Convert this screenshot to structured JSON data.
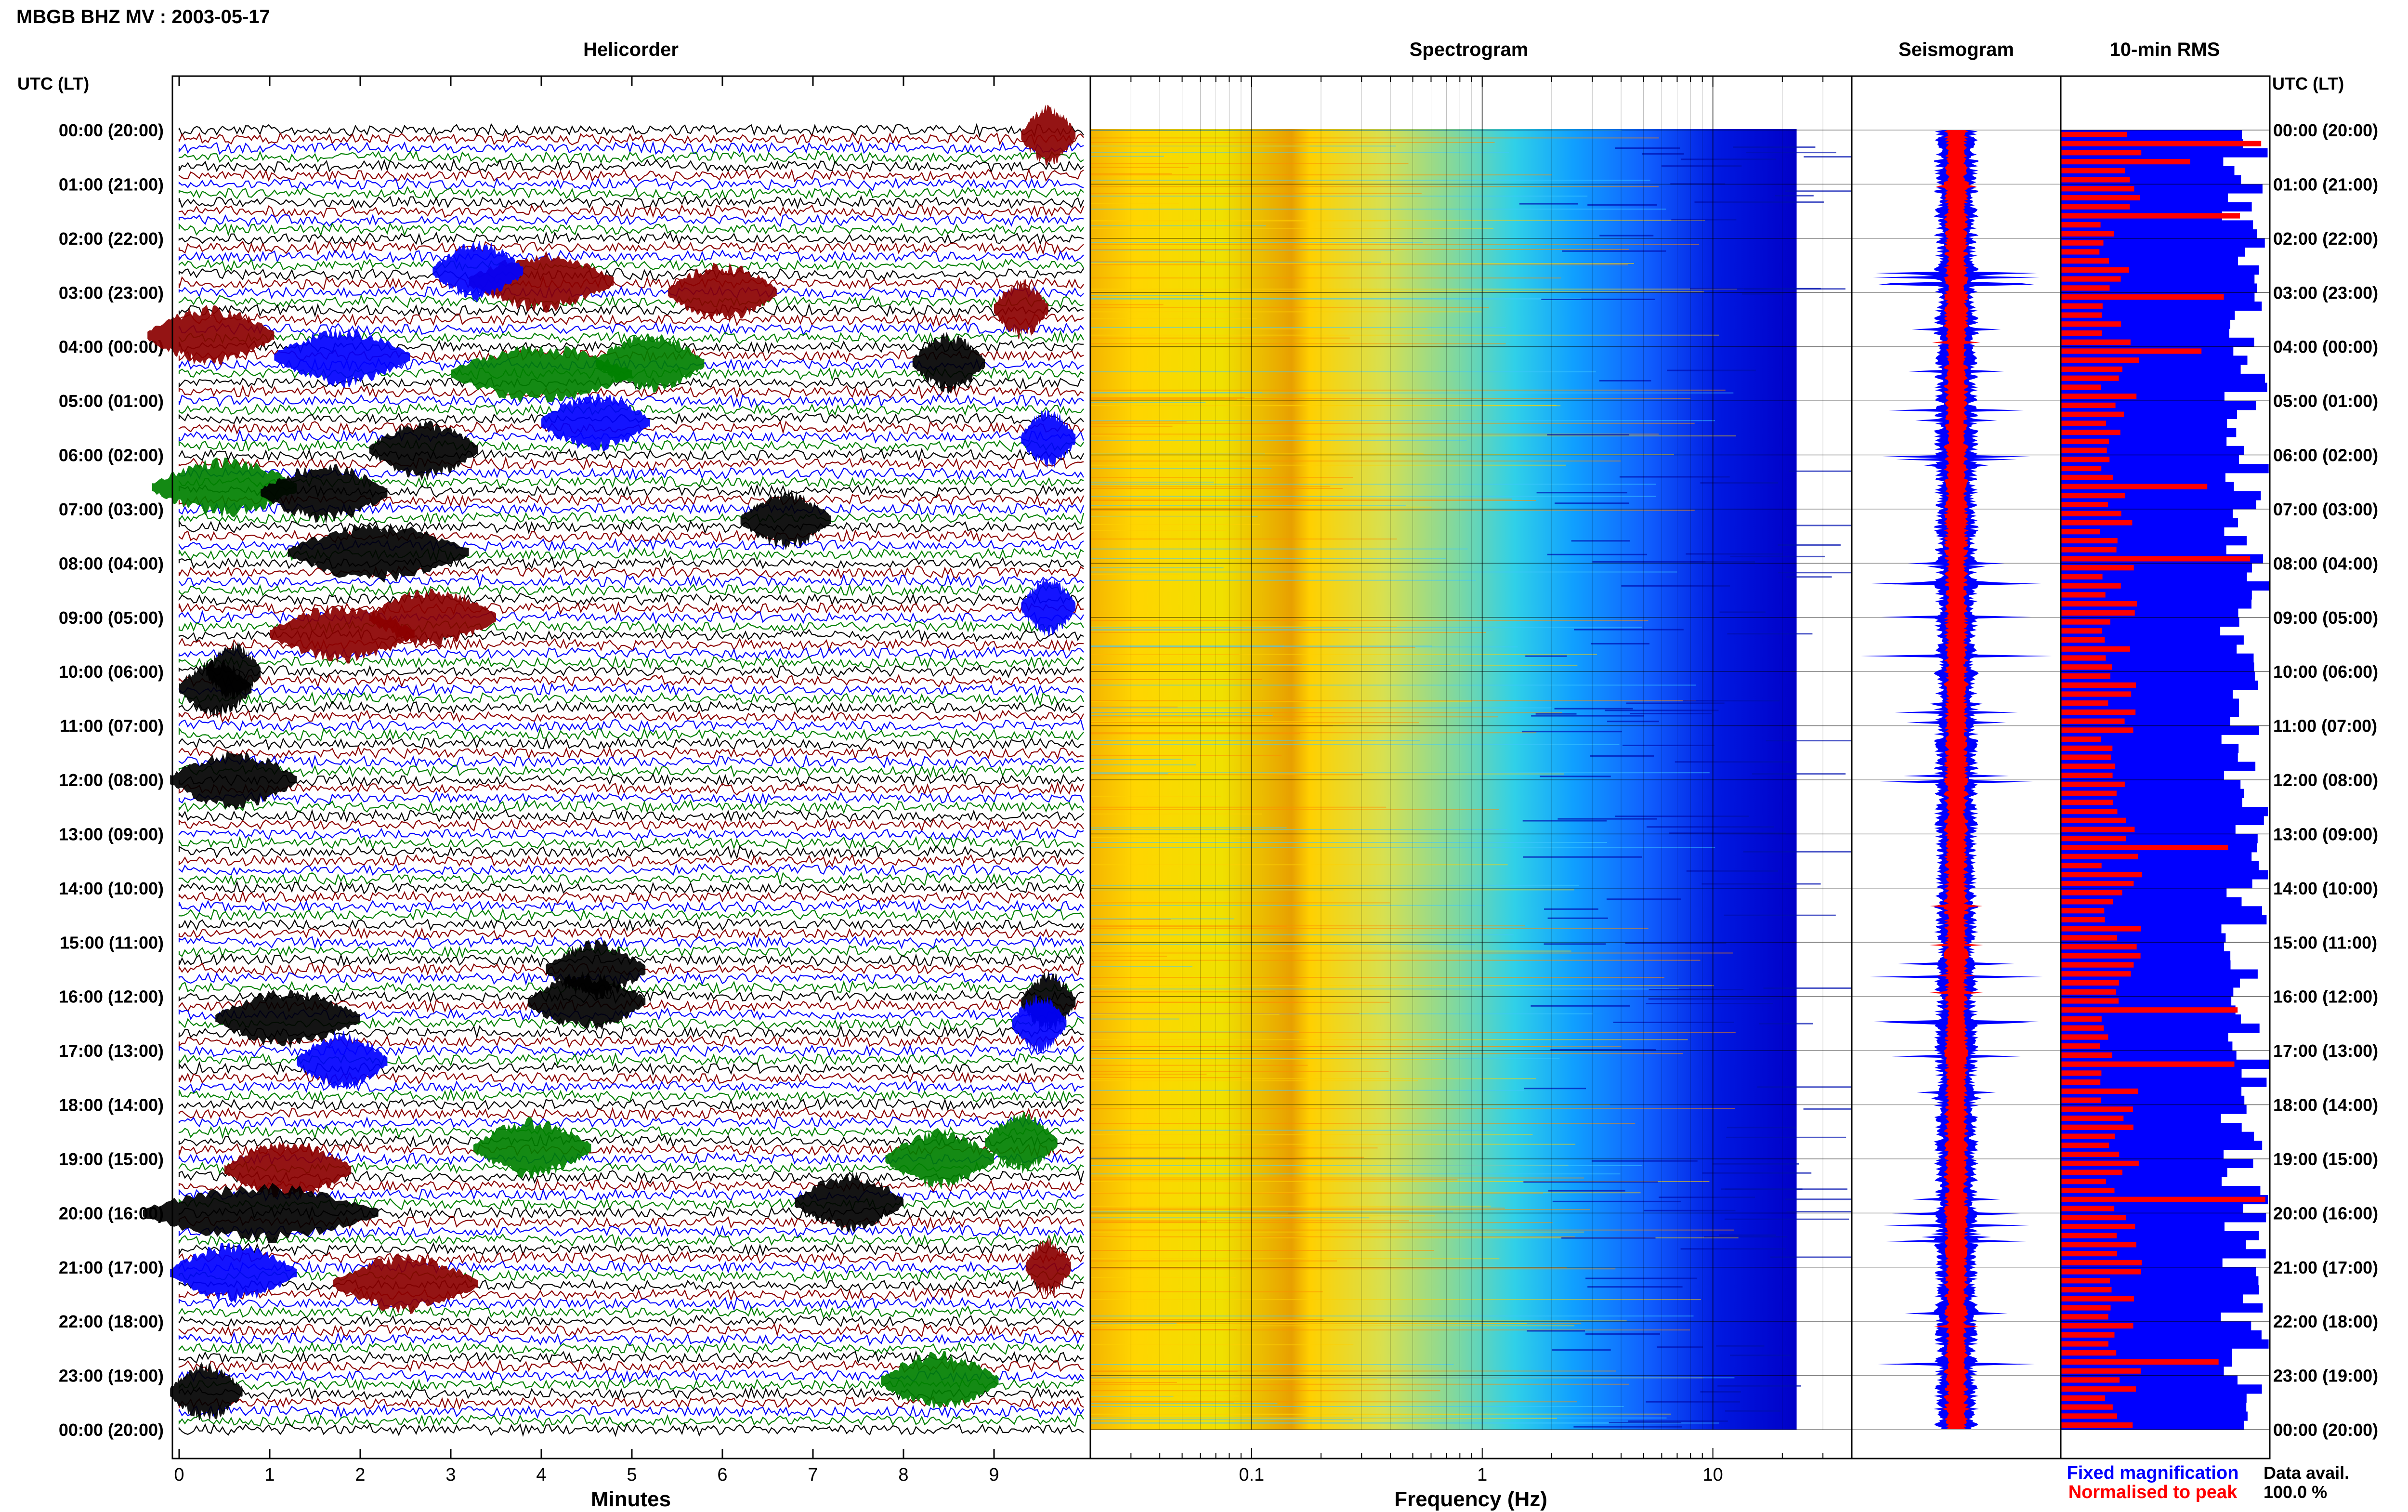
{
  "header": {
    "title": "MBGB BHZ MV : 2003-05-17"
  },
  "panels": {
    "helicorder": "Helicorder",
    "spectrogram": "Spectrogram",
    "seismogram": "Seismogram",
    "rms": "10-min RMS"
  },
  "time_axis": {
    "label": "UTC (LT)",
    "rows": [
      "00:00 (20:00)",
      "01:00 (21:00)",
      "02:00 (22:00)",
      "03:00 (23:00)",
      "04:00 (00:00)",
      "05:00 (01:00)",
      "06:00 (02:00)",
      "07:00 (03:00)",
      "08:00 (04:00)",
      "09:00 (05:00)",
      "10:00 (06:00)",
      "11:00 (07:00)",
      "12:00 (08:00)",
      "13:00 (09:00)",
      "14:00 (10:00)",
      "15:00 (11:00)",
      "16:00 (12:00)",
      "17:00 (13:00)",
      "18:00 (14:00)",
      "19:00 (15:00)",
      "20:00 (16:00)",
      "21:00 (17:00)",
      "22:00 (18:00)",
      "23:00 (19:00)",
      "00:00 (20:00)"
    ]
  },
  "legend": {
    "fixed": "Fixed magnification",
    "normalised": "Normalised to peak",
    "fixed_color": "#0000ff",
    "normalised_color": "#ff0000"
  },
  "data_avail": {
    "label": "Data avail.",
    "value": "100.0 %"
  },
  "chart_data": [
    {
      "type": "line",
      "panel": "Helicorder",
      "xlabel": "Minutes",
      "xticks": [
        "0",
        "1",
        "2",
        "3",
        "4",
        "5",
        "6",
        "7",
        "8",
        "9"
      ],
      "xlim": [
        0,
        10
      ],
      "trace_colors": [
        "#000000",
        "#8b0000",
        "#0000ff",
        "#008000"
      ],
      "traces_per_hour": 6
    },
    {
      "type": "heatmap",
      "panel": "Spectrogram",
      "xlabel": "Frequency (Hz)",
      "xscale": "log",
      "xticks": [
        "0.1",
        "1",
        "10"
      ],
      "xlim": [
        0.02,
        40
      ]
    },
    {
      "type": "line",
      "panel": "Seismogram",
      "series": [
        {
          "name": "Fixed magnification",
          "color": "#0000ff"
        },
        {
          "name": "Normalised to peak",
          "color": "#ff0000"
        }
      ]
    },
    {
      "type": "bar",
      "panel": "10-min RMS",
      "bars": 144,
      "series": [
        {
          "name": "Fixed magnification",
          "color": "#0000ff"
        },
        {
          "name": "Normalised to peak",
          "color": "#ff0000"
        }
      ]
    }
  ]
}
